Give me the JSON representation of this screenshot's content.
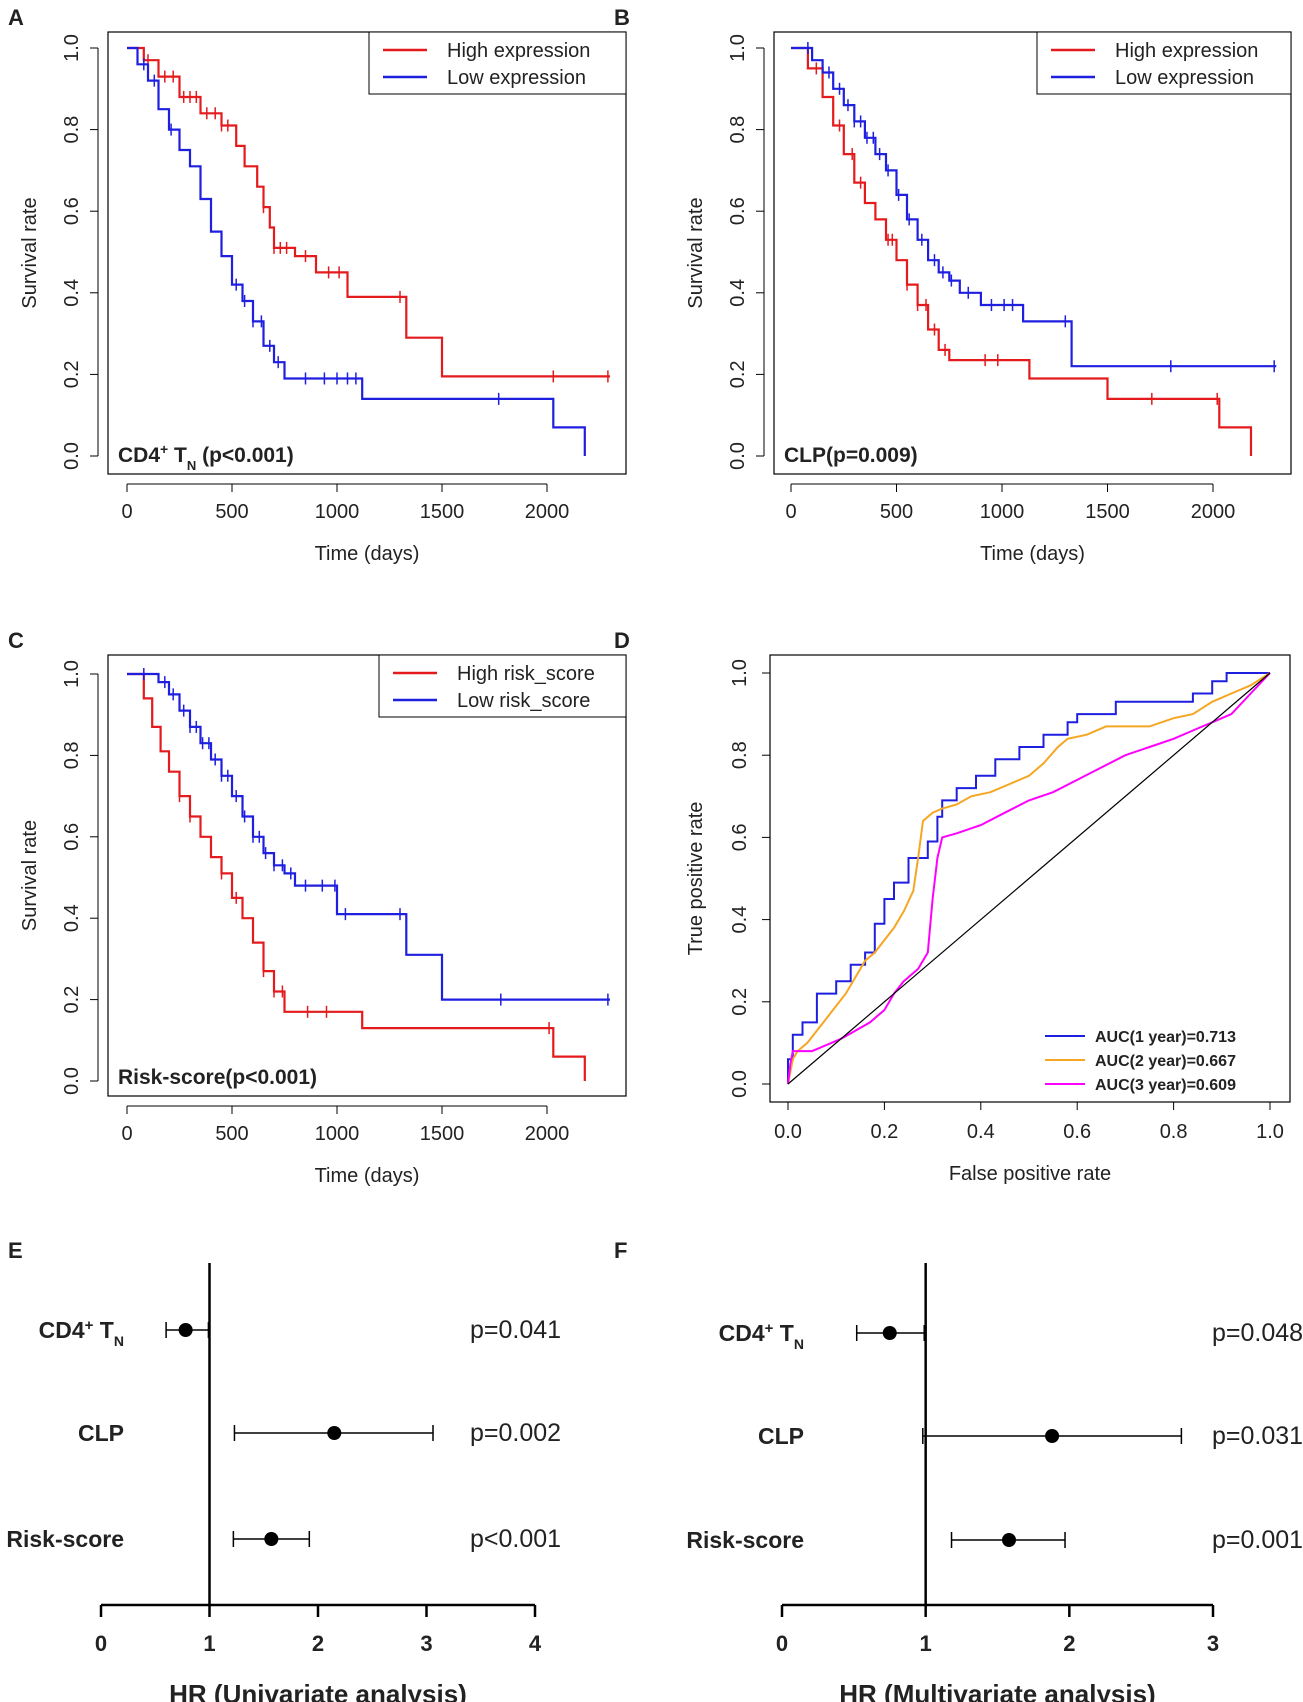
{
  "colors": {
    "red": "#e41a1c",
    "blue": "#1f1fe0",
    "orange": "#f5a623",
    "magenta": "#ff00ff",
    "black": "#000000"
  },
  "chart_data": [
    {
      "panel": "A",
      "type": "line",
      "subtype": "kaplan-meier",
      "annotation": "CD4⁺ Tɴ (p<0.001)",
      "annotation_main": "CD4",
      "annotation_sup": "+",
      "annotation_mid": " T",
      "annotation_sub": "N",
      "annotation_rest": " (p<0.001)",
      "xlabel": "Time (days)",
      "ylabel": "Survival rate",
      "xlim": [
        0,
        2300
      ],
      "ylim": [
        0,
        1
      ],
      "xticks": [
        "0",
        "500",
        "1000",
        "1500",
        "2000"
      ],
      "xtick_values": [
        0,
        500,
        1000,
        1500,
        2000
      ],
      "yticks": [
        "0.0",
        "0.2",
        "0.4",
        "0.6",
        "0.8",
        "1.0"
      ],
      "ytick_values": [
        0,
        0.2,
        0.4,
        0.6,
        0.8,
        1.0
      ],
      "legend_position": "top-right",
      "series": [
        {
          "name": "High expression",
          "color": "red",
          "x": [
            0,
            80,
            150,
            250,
            350,
            450,
            520,
            560,
            620,
            650,
            680,
            700,
            800,
            900,
            1050,
            1330,
            1500,
            2300
          ],
          "y": [
            1.0,
            0.97,
            0.93,
            0.88,
            0.84,
            0.81,
            0.76,
            0.71,
            0.66,
            0.61,
            0.56,
            0.51,
            0.49,
            0.45,
            0.39,
            0.29,
            0.195,
            0.195
          ],
          "censor_x": [
            100,
            180,
            220,
            270,
            300,
            330,
            380,
            420,
            450,
            480,
            650,
            700,
            730,
            760,
            850,
            960,
            1010,
            1300,
            2030,
            2290
          ]
        },
        {
          "name": "Low expression",
          "color": "blue",
          "x": [
            0,
            50,
            100,
            150,
            200,
            250,
            300,
            350,
            400,
            450,
            500,
            550,
            600,
            650,
            700,
            750,
            1120,
            2030,
            2180
          ],
          "y": [
            1.0,
            0.96,
            0.92,
            0.85,
            0.8,
            0.75,
            0.71,
            0.63,
            0.55,
            0.49,
            0.42,
            0.38,
            0.33,
            0.27,
            0.23,
            0.19,
            0.14,
            0.07,
            0.0
          ],
          "censor_x": [
            80,
            130,
            210,
            520,
            560,
            600,
            640,
            680,
            720,
            850,
            940,
            1000,
            1050,
            1090,
            1770
          ]
        }
      ]
    },
    {
      "panel": "B",
      "type": "line",
      "subtype": "kaplan-meier",
      "annotation": "CLP(p=0.009)",
      "xlabel": "Time (days)",
      "ylabel": "Survival rate",
      "xlim": [
        0,
        2300
      ],
      "ylim": [
        0,
        1
      ],
      "xticks": [
        "0",
        "500",
        "1000",
        "1500",
        "2000"
      ],
      "xtick_values": [
        0,
        500,
        1000,
        1500,
        2000
      ],
      "yticks": [
        "0.0",
        "0.2",
        "0.4",
        "0.6",
        "0.8",
        "1.0"
      ],
      "ytick_values": [
        0,
        0.2,
        0.4,
        0.6,
        0.8,
        1.0
      ],
      "legend_position": "top-right",
      "series": [
        {
          "name": "High expression",
          "color": "red",
          "x": [
            0,
            80,
            150,
            200,
            250,
            300,
            350,
            400,
            450,
            500,
            550,
            600,
            650,
            700,
            750,
            1130,
            1500,
            2030,
            2180
          ],
          "y": [
            1.0,
            0.95,
            0.88,
            0.81,
            0.74,
            0.67,
            0.62,
            0.58,
            0.53,
            0.48,
            0.42,
            0.37,
            0.31,
            0.26,
            0.235,
            0.19,
            0.14,
            0.07,
            0.0
          ],
          "censor_x": [
            120,
            230,
            290,
            330,
            460,
            480,
            550,
            600,
            640,
            680,
            730,
            920,
            980,
            1710,
            2020
          ]
        },
        {
          "name": "Low expression",
          "color": "blue",
          "x": [
            0,
            100,
            150,
            200,
            250,
            300,
            350,
            400,
            450,
            500,
            550,
            600,
            650,
            700,
            750,
            800,
            900,
            1100,
            1330,
            2300
          ],
          "y": [
            1.0,
            0.97,
            0.94,
            0.9,
            0.86,
            0.82,
            0.78,
            0.74,
            0.7,
            0.64,
            0.58,
            0.53,
            0.48,
            0.45,
            0.43,
            0.4,
            0.37,
            0.33,
            0.22,
            0.22
          ],
          "censor_x": [
            80,
            180,
            230,
            270,
            300,
            330,
            360,
            390,
            420,
            460,
            510,
            560,
            620,
            680,
            720,
            760,
            840,
            950,
            1010,
            1050,
            1300,
            1800,
            2290
          ]
        }
      ]
    },
    {
      "panel": "C",
      "type": "line",
      "subtype": "kaplan-meier",
      "annotation": "Risk-score(p<0.001)",
      "xlabel": "Time (days)",
      "ylabel": "Survival rate",
      "xlim": [
        0,
        2300
      ],
      "ylim": [
        0,
        1
      ],
      "xticks": [
        "0",
        "500",
        "1000",
        "1500",
        "2000"
      ],
      "xtick_values": [
        0,
        500,
        1000,
        1500,
        2000
      ],
      "yticks": [
        "0.0",
        "0.2",
        "0.4",
        "0.6",
        "0.8",
        "1.0"
      ],
      "ytick_values": [
        0,
        0.2,
        0.4,
        0.6,
        0.8,
        1.0
      ],
      "legend_position": "top-right",
      "series": [
        {
          "name": "High risk_score",
          "color": "red",
          "x": [
            0,
            80,
            120,
            160,
            200,
            250,
            300,
            350,
            400,
            450,
            500,
            550,
            600,
            650,
            700,
            750,
            1120,
            2030,
            2180
          ],
          "y": [
            1.0,
            0.94,
            0.87,
            0.81,
            0.76,
            0.7,
            0.65,
            0.6,
            0.55,
            0.51,
            0.45,
            0.4,
            0.34,
            0.27,
            0.22,
            0.17,
            0.13,
            0.06,
            0.0
          ],
          "censor_x": [
            250,
            300,
            450,
            520,
            650,
            700,
            740,
            860,
            950,
            2010
          ]
        },
        {
          "name": "Low risk_score",
          "color": "blue",
          "x": [
            0,
            150,
            200,
            250,
            300,
            350,
            400,
            450,
            500,
            550,
            600,
            650,
            700,
            750,
            800,
            1000,
            1330,
            1500,
            2300
          ],
          "y": [
            1.0,
            0.98,
            0.95,
            0.91,
            0.87,
            0.83,
            0.79,
            0.75,
            0.7,
            0.65,
            0.6,
            0.56,
            0.53,
            0.51,
            0.48,
            0.41,
            0.31,
            0.2,
            0.2
          ],
          "censor_x": [
            80,
            180,
            220,
            270,
            300,
            330,
            360,
            390,
            420,
            450,
            480,
            520,
            560,
            600,
            630,
            660,
            700,
            740,
            780,
            850,
            930,
            990,
            1040,
            1300,
            1780,
            2290
          ]
        }
      ]
    },
    {
      "panel": "D",
      "type": "line",
      "subtype": "roc",
      "xlabel": "False positive rate",
      "ylabel": "True positive rate",
      "xlim": [
        0,
        1
      ],
      "ylim": [
        0,
        1
      ],
      "xticks": [
        "0.0",
        "0.2",
        "0.4",
        "0.6",
        "0.8",
        "1.0"
      ],
      "xtick_values": [
        0,
        0.2,
        0.4,
        0.6,
        0.8,
        1.0
      ],
      "yticks": [
        "0.0",
        "0.2",
        "0.4",
        "0.6",
        "0.8",
        "1.0"
      ],
      "ytick_values": [
        0,
        0.2,
        0.4,
        0.6,
        0.8,
        1.0
      ],
      "legend_position": "bottom-right",
      "series": [
        {
          "name": "AUC(1 year)=0.713",
          "color": "blue",
          "x": [
            0,
            0,
            0.01,
            0.01,
            0.03,
            0.03,
            0.06,
            0.06,
            0.1,
            0.1,
            0.13,
            0.13,
            0.16,
            0.16,
            0.18,
            0.18,
            0.2,
            0.2,
            0.22,
            0.22,
            0.25,
            0.25,
            0.29,
            0.29,
            0.31,
            0.31,
            0.32,
            0.32,
            0.35,
            0.35,
            0.39,
            0.39,
            0.43,
            0.43,
            0.48,
            0.48,
            0.53,
            0.53,
            0.58,
            0.58,
            0.6,
            0.6,
            0.68,
            0.68,
            0.84,
            0.84,
            0.88,
            0.88,
            0.91,
            0.91,
            0.94,
            0.94,
            1.0
          ],
          "y": [
            0,
            0.06,
            0.06,
            0.12,
            0.12,
            0.15,
            0.15,
            0.22,
            0.22,
            0.25,
            0.25,
            0.29,
            0.29,
            0.32,
            0.32,
            0.39,
            0.39,
            0.45,
            0.45,
            0.49,
            0.49,
            0.55,
            0.55,
            0.59,
            0.59,
            0.65,
            0.65,
            0.69,
            0.69,
            0.72,
            0.72,
            0.75,
            0.75,
            0.79,
            0.79,
            0.82,
            0.82,
            0.85,
            0.85,
            0.88,
            0.88,
            0.9,
            0.9,
            0.93,
            0.93,
            0.95,
            0.95,
            0.98,
            0.98,
            1.0,
            1.0,
            1.0,
            1.0
          ]
        },
        {
          "name": "AUC(2 year)=0.667",
          "color": "orange",
          "x": [
            0,
            0.005,
            0.01,
            0.02,
            0.04,
            0.06,
            0.08,
            0.1,
            0.12,
            0.14,
            0.16,
            0.18,
            0.2,
            0.22,
            0.24,
            0.26,
            0.27,
            0.28,
            0.3,
            0.32,
            0.35,
            0.38,
            0.42,
            0.46,
            0.5,
            0.53,
            0.56,
            0.58,
            0.62,
            0.66,
            0.7,
            0.75,
            0.8,
            0.84,
            0.88,
            0.92,
            0.96,
            1.0
          ],
          "y": [
            0,
            0.03,
            0.06,
            0.08,
            0.1,
            0.13,
            0.16,
            0.19,
            0.22,
            0.26,
            0.3,
            0.32,
            0.35,
            0.38,
            0.42,
            0.47,
            0.55,
            0.64,
            0.66,
            0.67,
            0.68,
            0.7,
            0.71,
            0.73,
            0.75,
            0.78,
            0.82,
            0.84,
            0.85,
            0.87,
            0.87,
            0.87,
            0.89,
            0.9,
            0.93,
            0.95,
            0.97,
            1.0
          ]
        },
        {
          "name": "AUC(3 year)=0.609",
          "color": "magenta",
          "x": [
            0,
            0.005,
            0.01,
            0.03,
            0.05,
            0.07,
            0.09,
            0.11,
            0.14,
            0.17,
            0.2,
            0.22,
            0.24,
            0.27,
            0.29,
            0.3,
            0.31,
            0.32,
            0.35,
            0.4,
            0.45,
            0.5,
            0.55,
            0.6,
            0.65,
            0.7,
            0.75,
            0.8,
            0.84,
            0.88,
            0.92,
            0.96,
            1.0
          ],
          "y": [
            0,
            0.05,
            0.08,
            0.08,
            0.08,
            0.09,
            0.1,
            0.11,
            0.13,
            0.15,
            0.18,
            0.22,
            0.25,
            0.28,
            0.32,
            0.45,
            0.55,
            0.6,
            0.61,
            0.63,
            0.66,
            0.69,
            0.71,
            0.74,
            0.77,
            0.8,
            0.82,
            0.84,
            0.86,
            0.88,
            0.9,
            0.95,
            1.0
          ]
        },
        {
          "name": "diagonal",
          "color": "black",
          "x": [
            0,
            1
          ],
          "y": [
            0,
            1
          ]
        }
      ]
    },
    {
      "panel": "E",
      "type": "scatter",
      "subtype": "forest",
      "xlabel": "HR (Univariate analysis)",
      "xlim": [
        0,
        4
      ],
      "xticks": [
        "0",
        "1",
        "2",
        "3",
        "4"
      ],
      "xtick_values": [
        0,
        1,
        2,
        3,
        4
      ],
      "reference_line": 1,
      "rows": [
        {
          "label": "CD4⁺ Tɴ",
          "label_main": "CD4",
          "label_sup": "+",
          "label_mid": " T",
          "label_sub": "N",
          "hr": 0.78,
          "lower": 0.6,
          "upper": 0.99,
          "p": "p=0.041"
        },
        {
          "label": "CLP",
          "hr": 2.15,
          "lower": 1.23,
          "upper": 3.06,
          "p": "p=0.002"
        },
        {
          "label": "Risk-score",
          "hr": 1.57,
          "lower": 1.22,
          "upper": 1.92,
          "p": "p<0.001"
        }
      ]
    },
    {
      "panel": "F",
      "type": "scatter",
      "subtype": "forest",
      "xlabel": "HR (Multivariate analysis)",
      "xlim": [
        0,
        3
      ],
      "xticks": [
        "0",
        "1",
        "2",
        "3"
      ],
      "xtick_values": [
        0,
        1,
        2,
        3
      ],
      "reference_line": 1,
      "rows": [
        {
          "label": "CD4⁺ Tɴ",
          "label_main": "CD4",
          "label_sup": "+",
          "label_mid": " T",
          "label_sub": "N",
          "hr": 0.75,
          "lower": 0.52,
          "upper": 0.99,
          "p": "p=0.048"
        },
        {
          "label": "CLP",
          "hr": 1.88,
          "lower": 0.98,
          "upper": 2.78,
          "p": "p=0.031"
        },
        {
          "label": "Risk-score",
          "hr": 1.58,
          "lower": 1.18,
          "upper": 1.97,
          "p": "p=0.001"
        }
      ]
    }
  ]
}
